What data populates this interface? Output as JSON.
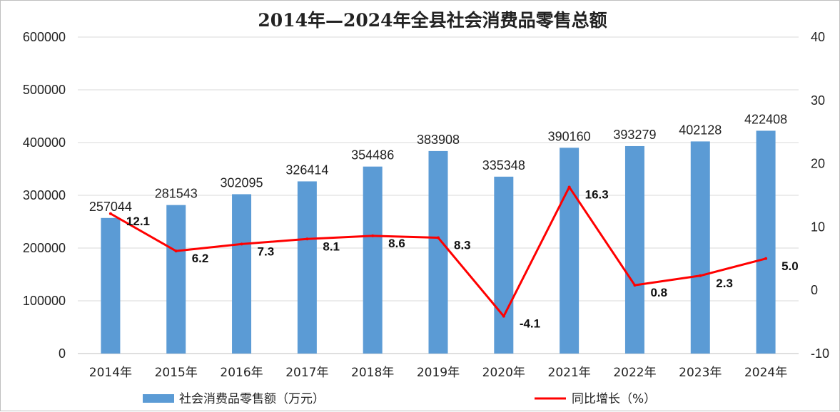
{
  "chart_data": {
    "type": "bar",
    "title": "2014年—2024年全县社会消费品零售总额",
    "categories": [
      "2014年",
      "2015年",
      "2016年",
      "2017年",
      "2018年",
      "2019年",
      "2020年",
      "2021年",
      "2022年",
      "2023年",
      "2024年"
    ],
    "series": [
      {
        "name": "社会消费品零售额（万元）",
        "type": "bar",
        "axis": "left",
        "color": "#5b9bd5",
        "values": [
          257044,
          281543,
          302095,
          326414,
          354486,
          383908,
          335348,
          390160,
          393279,
          402128,
          422408
        ],
        "labels": [
          "257044",
          "281543",
          "302095",
          "326414",
          "354486",
          "383908",
          "335348",
          "390160",
          "393279",
          "402128",
          "422408"
        ]
      },
      {
        "name": "同比增长（%）",
        "type": "line",
        "axis": "right",
        "color": "#ff0000",
        "values": [
          12.1,
          6.2,
          7.3,
          8.1,
          8.6,
          8.3,
          -4.1,
          16.3,
          0.8,
          2.3,
          5.0
        ],
        "labels": [
          "12.1",
          "6.2",
          "7.3",
          "8.1",
          "8.6",
          "8.3",
          "-4.1",
          "16.3",
          "0.8",
          "2.3",
          "5.0"
        ]
      }
    ],
    "y_left": {
      "ylim": [
        0,
        600000
      ],
      "ticks": [
        "0",
        "100000",
        "200000",
        "300000",
        "400000",
        "500000",
        "600000"
      ]
    },
    "y_right": {
      "ylim": [
        -10,
        40
      ],
      "ticks": [
        "-10",
        "0",
        "10",
        "20",
        "30",
        "40"
      ]
    },
    "grid": "horizontal",
    "legend_position": "bottom"
  }
}
